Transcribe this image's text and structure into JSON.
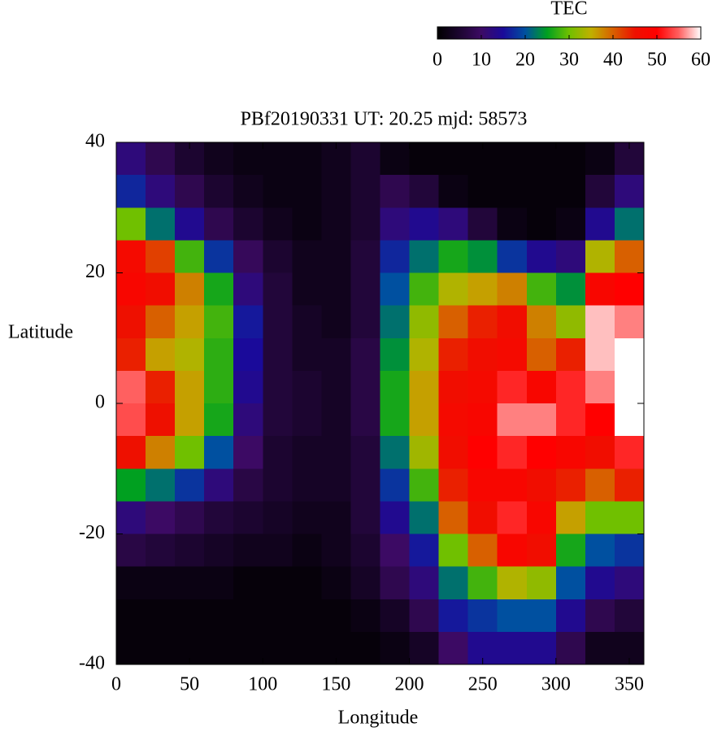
{
  "chart_data": {
    "type": "heatmap",
    "title": "PBf20190331  UT: 20.25  mjd: 58573",
    "xlabel": "Longitude",
    "ylabel": "Latitude",
    "xlim": [
      0,
      360
    ],
    "ylim": [
      -40,
      40
    ],
    "xticks": [
      0,
      50,
      100,
      150,
      200,
      250,
      300,
      350
    ],
    "yticks": [
      -40,
      -20,
      0,
      20,
      40
    ],
    "colorbar": {
      "title": "TEC",
      "clim": [
        0,
        60
      ],
      "ticks": [
        0,
        10,
        20,
        30,
        40,
        50,
        60
      ],
      "colors": [
        "#000000",
        "#1c0530",
        "#3c0a64",
        "#1a0a9a",
        "#0050a0",
        "#00a020",
        "#70c000",
        "#c0b000",
        "#d86000",
        "#ee1000",
        "#ff0000",
        "#ff6060",
        "#ffffff"
      ]
    },
    "x": [
      10,
      30,
      50,
      70,
      90,
      110,
      130,
      150,
      170,
      190,
      210,
      230,
      250,
      270,
      290,
      310,
      330,
      350
    ],
    "y": [
      37.5,
      32.5,
      27.5,
      22.5,
      17.5,
      12.5,
      7.5,
      2.5,
      -2.5,
      -7.5,
      -12.5,
      -17.5,
      -22.5,
      -27.5,
      -32.5,
      -37.5
    ],
    "z": [
      [
        12,
        8,
        5,
        3,
        2,
        2,
        2,
        3,
        5,
        2,
        1,
        1,
        1,
        1,
        1,
        1,
        2,
        6
      ],
      [
        17,
        12,
        8,
        5,
        3,
        2,
        2,
        3,
        5,
        8,
        6,
        2,
        1,
        1,
        1,
        1,
        6,
        12
      ],
      [
        30,
        22,
        14,
        8,
        5,
        3,
        2,
        3,
        5,
        12,
        14,
        12,
        6,
        2,
        1,
        2,
        14,
        22
      ],
      [
        47,
        42,
        28,
        18,
        9,
        5,
        3,
        3,
        6,
        17,
        22,
        26,
        24,
        18,
        14,
        12,
        34,
        40
      ],
      [
        48,
        46,
        38,
        26,
        12,
        6,
        3,
        3,
        6,
        20,
        28,
        34,
        36,
        38,
        28,
        24,
        48,
        50
      ],
      [
        45,
        40,
        36,
        28,
        16,
        6,
        4,
        3,
        6,
        22,
        32,
        40,
        44,
        46,
        38,
        32,
        58,
        56
      ],
      [
        44,
        36,
        34,
        27,
        15,
        6,
        4,
        4,
        7,
        24,
        34,
        44,
        46,
        47,
        40,
        44,
        58,
        60
      ],
      [
        55,
        44,
        36,
        27,
        14,
        6,
        5,
        4,
        7,
        26,
        36,
        46,
        47,
        52,
        48,
        52,
        56,
        60
      ],
      [
        54,
        45,
        36,
        26,
        12,
        6,
        5,
        4,
        7,
        26,
        36,
        47,
        48,
        56,
        56,
        52,
        50,
        60
      ],
      [
        45,
        38,
        30,
        20,
        10,
        5,
        4,
        4,
        6,
        22,
        33,
        46,
        50,
        52,
        50,
        48,
        46,
        52
      ],
      [
        25,
        22,
        18,
        12,
        7,
        5,
        4,
        4,
        6,
        18,
        28,
        44,
        48,
        48,
        46,
        44,
        40,
        44
      ],
      [
        12,
        10,
        8,
        6,
        5,
        4,
        3,
        3,
        6,
        14,
        22,
        40,
        46,
        52,
        48,
        36,
        30,
        30
      ],
      [
        7,
        6,
        5,
        4,
        3,
        3,
        2,
        3,
        5,
        10,
        16,
        30,
        40,
        48,
        46,
        26,
        20,
        18
      ],
      [
        2,
        2,
        2,
        2,
        1,
        1,
        1,
        2,
        4,
        8,
        12,
        22,
        28,
        34,
        32,
        20,
        14,
        12
      ],
      [
        1,
        1,
        1,
        1,
        1,
        1,
        1,
        1,
        2,
        4,
        8,
        16,
        18,
        20,
        20,
        14,
        8,
        6
      ],
      [
        1,
        1,
        1,
        1,
        1,
        1,
        1,
        1,
        1,
        2,
        4,
        10,
        14,
        14,
        14,
        8,
        3,
        3
      ]
    ]
  }
}
